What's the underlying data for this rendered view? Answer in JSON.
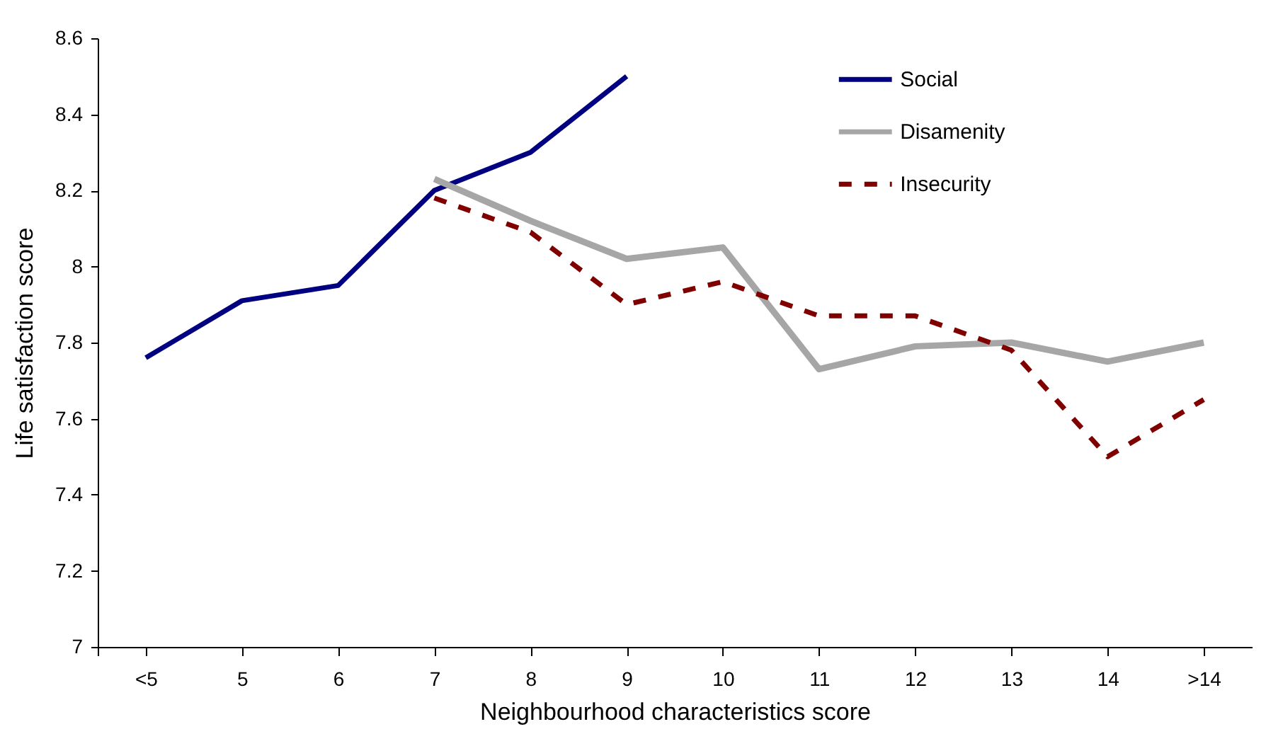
{
  "chart_data": {
    "type": "line",
    "xlabel": "Neighbourhood characteristics score",
    "ylabel": "Life satisfaction score",
    "categories": [
      "<5",
      "5",
      "6",
      "7",
      "8",
      "9",
      "10",
      "11",
      "12",
      "13",
      "14",
      ">14"
    ],
    "series": [
      {
        "name": "Social",
        "color": "#000080",
        "line_style": "solid",
        "values": [
          7.76,
          7.91,
          7.95,
          8.2,
          8.3,
          8.5,
          null,
          null,
          null,
          null,
          null,
          null
        ]
      },
      {
        "name": "Disamenity",
        "color": "#a6a6a6",
        "line_style": "solid",
        "values": [
          null,
          null,
          null,
          8.23,
          8.12,
          8.02,
          8.05,
          7.73,
          7.79,
          7.8,
          7.75,
          7.8
        ]
      },
      {
        "name": "Insecurity",
        "color": "#800000",
        "line_style": "dashed",
        "values": [
          null,
          null,
          null,
          8.18,
          8.09,
          7.9,
          7.96,
          7.87,
          7.87,
          7.78,
          7.5,
          7.65
        ]
      }
    ],
    "ylim": [
      7,
      8.6
    ],
    "yticks": [
      7,
      7.2,
      7.4,
      7.6,
      7.8,
      8,
      8.2,
      8.4,
      8.6
    ],
    "grid": false,
    "legend": "top right",
    "marker": "none"
  }
}
